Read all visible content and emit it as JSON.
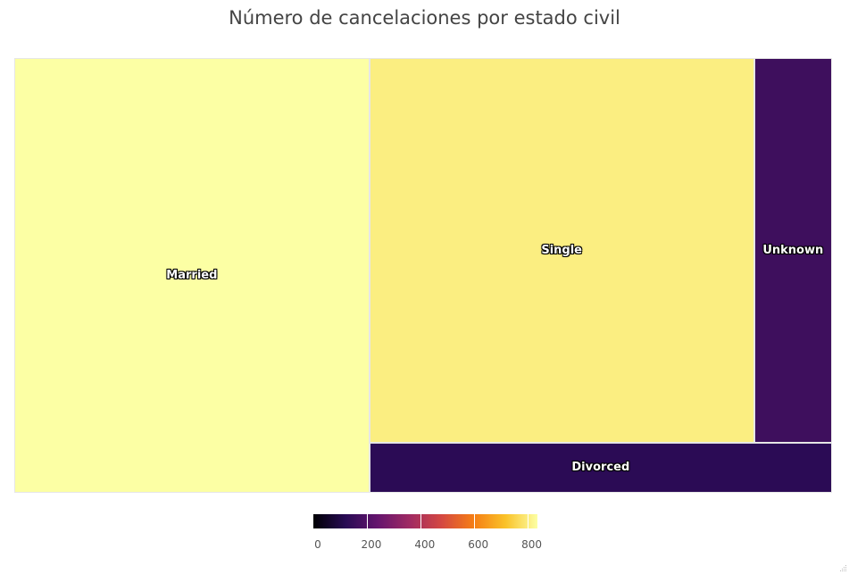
{
  "title": "Número de cancelaciones por estado civil",
  "chart_data": {
    "type": "treemap",
    "title": "Número de cancelaciones por estado civil",
    "series": [
      {
        "name": "Married",
        "value": 838
      },
      {
        "name": "Single",
        "value": 804
      },
      {
        "name": "Divorced",
        "value": 125
      },
      {
        "name": "Unknown",
        "value": 163
      }
    ],
    "colorscale": "Inferno",
    "color_range": [
      0,
      838
    ],
    "colorbar": {
      "orientation": "horizontal",
      "position": "bottom-center",
      "ticks": [
        0,
        200,
        400,
        600,
        800
      ],
      "tick_labels": [
        "0",
        "200",
        "400",
        "600",
        "800"
      ]
    }
  },
  "colorscale_stops": [
    "#000004",
    "#280b54",
    "#65156e",
    "#9f2a63",
    "#d44842",
    "#f57d15",
    "#fac228",
    "#fcffa4"
  ]
}
